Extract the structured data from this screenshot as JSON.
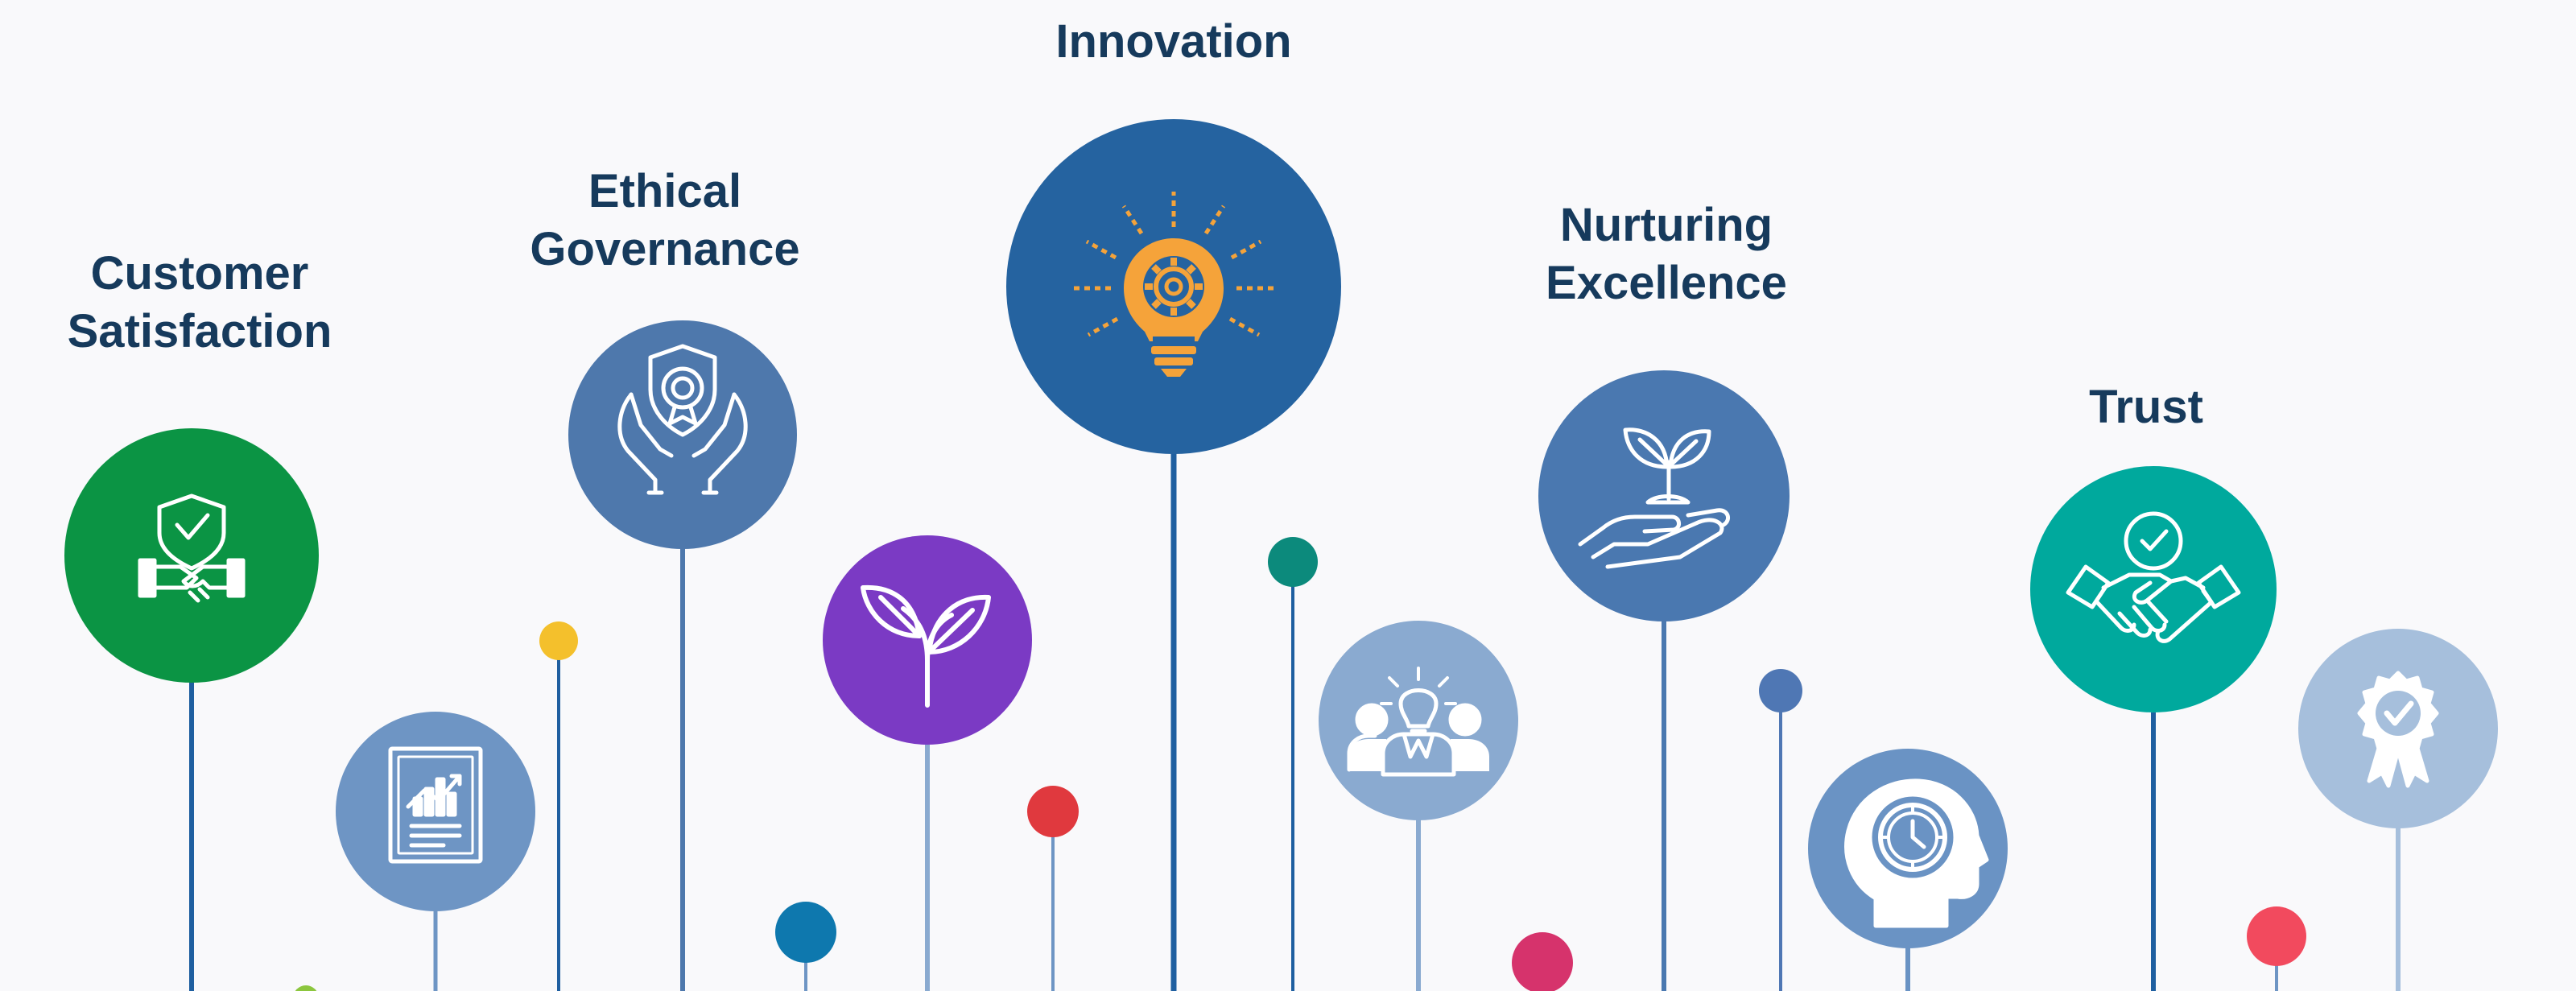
{
  "values": [
    {
      "name": "customer-satisfaction",
      "label_lines": [
        "Customer",
        "Satisfaction"
      ],
      "icon": "shield-handshake-icon",
      "color": "#0b9444"
    },
    {
      "name": "ethical-governance",
      "label_lines": [
        "Ethical",
        "Governance"
      ],
      "icon": "hands-shield-badge-icon",
      "color": "#4e78ac"
    },
    {
      "name": "innovation",
      "label_lines": [
        "Innovation"
      ],
      "icon": "lightbulb-gear-icon",
      "color": "#2563a0"
    },
    {
      "name": "nurturing-excellence",
      "label_lines": [
        "Nurturing",
        "Excellence"
      ],
      "icon": "hand-sprout-icon",
      "color": "#4a78b0"
    },
    {
      "name": "trust",
      "label_lines": [
        "Trust"
      ],
      "icon": "handshake-check-icon",
      "color": "#00a99d"
    }
  ],
  "decor_circles": [
    {
      "icon": "report-chart-icon",
      "color": "#6e95c4"
    },
    {
      "icon": "leaf-sprout-icon",
      "color": "#7b3ac4"
    },
    {
      "icon": "team-idea-icon",
      "color": "#8aaad0"
    },
    {
      "icon": "head-clock-icon",
      "color": "#6a93c4"
    },
    {
      "icon": "award-ribbon-icon",
      "color": "#a6bfdc"
    }
  ],
  "dot_colors": [
    "#f4c02c",
    "#0e78ae",
    "#e0393e",
    "#0c8a7c",
    "#d6336c",
    "#4f77b4",
    "#f24a5e",
    "#8cc63e"
  ],
  "icon_accent": "#f5a33a"
}
